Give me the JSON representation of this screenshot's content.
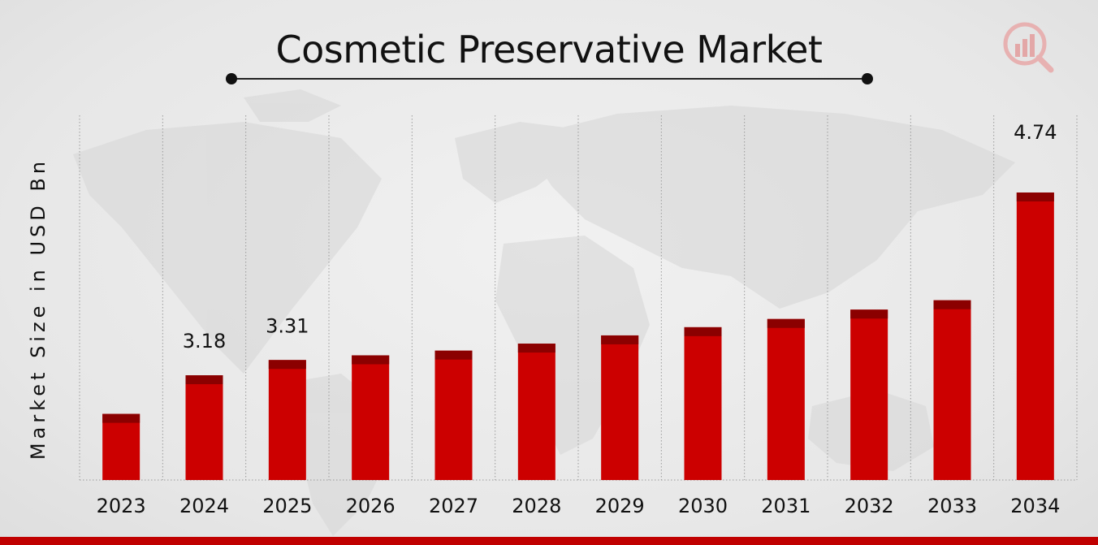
{
  "chart_data": {
    "type": "bar",
    "title": "Cosmetic Preservative Market",
    "xlabel": "",
    "ylabel": "Market Size in USD Bn",
    "categories": [
      "2023",
      "2024",
      "2025",
      "2026",
      "2027",
      "2028",
      "2029",
      "2030",
      "2031",
      "2032",
      "2033",
      "2034"
    ],
    "values": [
      2.85,
      3.18,
      3.31,
      3.35,
      3.39,
      3.45,
      3.52,
      3.59,
      3.66,
      3.74,
      3.82,
      4.74
    ],
    "data_labels": [
      {
        "category": "2024",
        "text": "3.18"
      },
      {
        "category": "2025",
        "text": "3.31"
      },
      {
        "category": "2034",
        "text": "4.74"
      }
    ],
    "grid": "vertical dotted",
    "colors": {
      "bar": "#cc0000",
      "bar_cap": "#8b0000",
      "accent": "#c00000"
    }
  }
}
